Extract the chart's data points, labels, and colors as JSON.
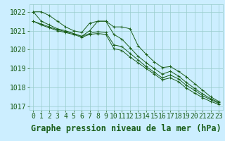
{
  "background_color": "#cceeff",
  "grid_color": "#99cccc",
  "line_color": "#1a5e1a",
  "marker_color": "#1a5e1a",
  "x_values": [
    0,
    1,
    2,
    3,
    4,
    5,
    6,
    7,
    8,
    9,
    10,
    11,
    12,
    13,
    14,
    15,
    16,
    17,
    18,
    19,
    20,
    21,
    22,
    23
  ],
  "series": [
    [
      1022.0,
      1022.0,
      1021.8,
      1021.5,
      1021.2,
      1021.0,
      1020.9,
      1021.4,
      1021.5,
      1021.5,
      1021.2,
      1021.2,
      1021.1,
      1020.2,
      1019.75,
      1019.35,
      1019.05,
      1019.1,
      1018.85,
      1018.55,
      1018.2,
      1017.85,
      1017.5,
      1017.25
    ],
    [
      1022.0,
      1021.5,
      1021.3,
      1021.1,
      1021.0,
      1020.85,
      1020.7,
      1021.0,
      1021.5,
      1021.5,
      1020.8,
      1020.55,
      1020.1,
      1019.65,
      1019.3,
      1019.0,
      1018.7,
      1018.85,
      1018.6,
      1018.25,
      1017.95,
      1017.65,
      1017.4,
      1017.2
    ],
    [
      1021.5,
      1021.35,
      1021.2,
      1021.05,
      1020.95,
      1020.85,
      1020.7,
      1020.85,
      1020.95,
      1020.9,
      1020.25,
      1020.15,
      1019.8,
      1019.45,
      1019.1,
      1018.8,
      1018.5,
      1018.65,
      1018.45,
      1018.1,
      1017.85,
      1017.55,
      1017.35,
      1017.15
    ],
    [
      1021.5,
      1021.3,
      1021.15,
      1021.0,
      1020.9,
      1020.8,
      1020.65,
      1020.8,
      1020.85,
      1020.8,
      1020.05,
      1019.95,
      1019.6,
      1019.3,
      1019.0,
      1018.7,
      1018.4,
      1018.5,
      1018.3,
      1017.95,
      1017.7,
      1017.45,
      1017.25,
      1017.1
    ]
  ],
  "ylim": [
    1016.8,
    1022.4
  ],
  "yticks": [
    1017,
    1018,
    1019,
    1020,
    1021,
    1022
  ],
  "xlabel": "Graphe pression niveau de la mer (hPa)",
  "axis_label_color": "#1a5e1a",
  "tick_color": "#1a5e1a",
  "xlabel_fontsize": 8.5,
  "tick_fontsize": 7,
  "marker": "+"
}
